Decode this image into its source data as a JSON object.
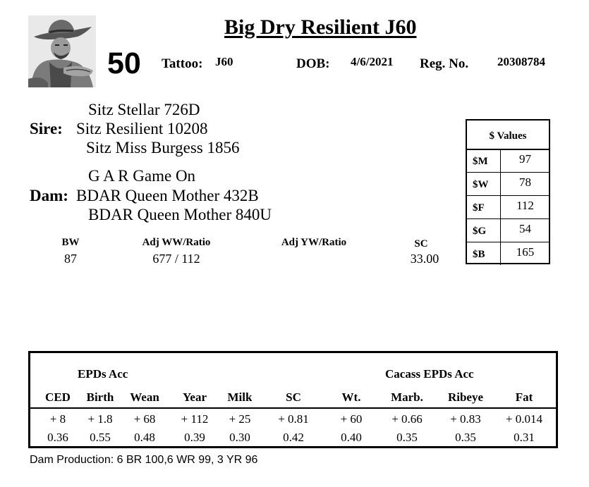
{
  "header": {
    "title": "Big Dry Resilient J60",
    "lot_number": "50",
    "tattoo_label": "Tattoo:",
    "tattoo": "J60",
    "dob_label": "DOB:",
    "dob": "4/6/2021",
    "reg_label": "Reg. No.",
    "reg_no": "20308784"
  },
  "pedigree": {
    "sire_label": "Sire:",
    "sire": "Sitz Resilient 10208",
    "sire_sire": "Sitz Stellar 726D",
    "sire_dam": "Sitz Miss Burgess 1856",
    "dam_label": "Dam:",
    "dam": "BDAR Queen Mother 432B",
    "dam_sire": "G A R Game On",
    "dam_dam": "BDAR Queen Mother 840U"
  },
  "performance": {
    "headers": [
      "BW",
      "Adj WW/Ratio",
      "Adj YW/Ratio",
      "SC"
    ],
    "values": [
      "87",
      "677 / 112",
      "",
      "33.00"
    ]
  },
  "dollar_values": {
    "title": "$ Values",
    "rows": [
      {
        "label": "$M",
        "value": "97"
      },
      {
        "label": "$W",
        "value": "78"
      },
      {
        "label": "$F",
        "value": "112"
      },
      {
        "label": "$G",
        "value": "54"
      },
      {
        "label": "$B",
        "value": "165"
      }
    ]
  },
  "epd": {
    "group_left": "EPDs   Acc",
    "group_right": "Cacass EPDs   Acc",
    "columns": [
      "CED",
      "Birth",
      "Wean",
      "Year",
      "Milk",
      "SC",
      "Wt.",
      "Marb.",
      "Ribeye",
      "Fat"
    ],
    "epds": [
      "+ 8",
      "+ 1.8",
      "+ 68",
      "+ 112",
      "+ 25",
      "+ 0.81",
      "+ 60",
      "+ 0.66",
      "+ 0.83",
      "+ 0.014"
    ],
    "accuracy": [
      "0.36",
      "0.55",
      "0.48",
      "0.39",
      "0.30",
      "0.42",
      "0.40",
      "0.35",
      "0.35",
      "0.31"
    ]
  },
  "footer": {
    "dam_production": "Dam Production: 6 BR 100,6 WR 99, 3 YR 96"
  },
  "icons": {
    "logo": "cowboy-portrait-logo"
  }
}
